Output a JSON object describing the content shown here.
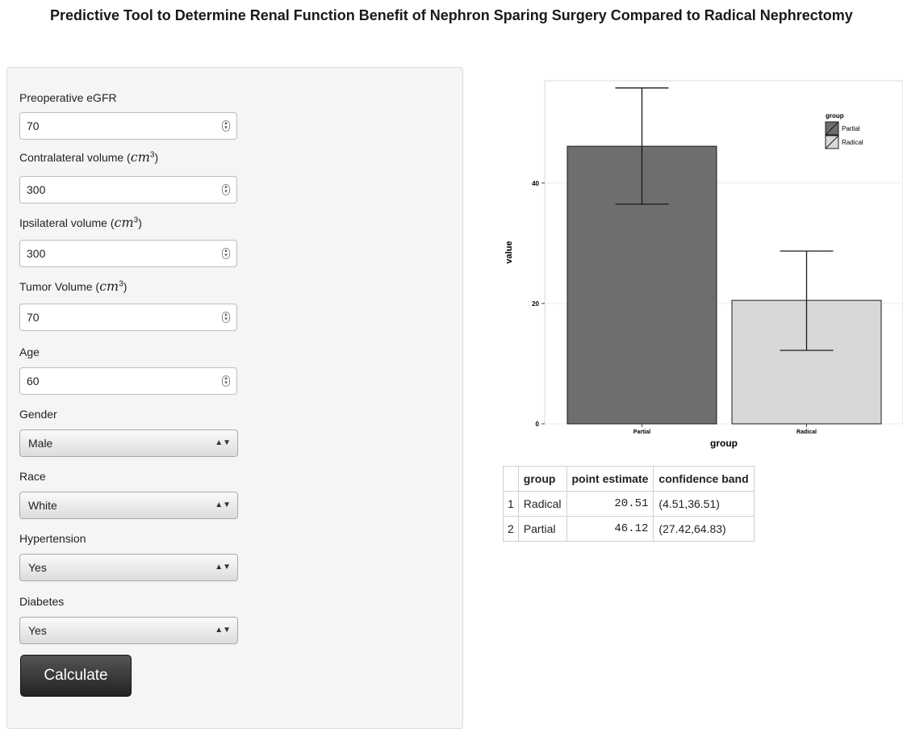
{
  "title": "Predictive Tool to Determine Renal Function Benefit of Nephron Sparing Surgery Compared to Radical Nephrectomy",
  "form": {
    "preop_egfr_label": "Preoperative eGFR",
    "preop_egfr_value": "70",
    "contralateral_label": "Contralateral volume",
    "contralateral_value": "300",
    "ipsilateral_label": "Ipsilateral volume",
    "ipsilateral_value": "300",
    "tumor_label": "Tumor Volume",
    "tumor_value": "70",
    "unit": "cm",
    "unit_exp": "3",
    "age_label": "Age",
    "age_value": "60",
    "gender_label": "Gender",
    "gender_value": "Male",
    "race_label": "Race",
    "race_value": "White",
    "hypertension_label": "Hypertension",
    "hypertension_value": "Yes",
    "diabetes_label": "Diabetes",
    "diabetes_value": "Yes",
    "calculate_label": "Calculate"
  },
  "chart_data": {
    "type": "bar",
    "categories": [
      "Partial",
      "Radical"
    ],
    "values": [
      46.12,
      20.51
    ],
    "error_low": [
      36.5,
      12.2
    ],
    "error_high": [
      55.8,
      28.7
    ],
    "xlabel": "group",
    "ylabel": "value",
    "ylim": [
      0,
      57
    ],
    "yticks": [
      "0",
      "20",
      "40"
    ],
    "legend_title": "group",
    "legend_labels": [
      "Partial",
      "Radical"
    ],
    "legend_position": "top-right",
    "colors": [
      "#6e6e6e",
      "#d8d8d8"
    ]
  },
  "results": {
    "headers": [
      "group",
      "point estimate",
      "confidence band"
    ],
    "rows": [
      {
        "idx": "1",
        "group": "Radical",
        "estimate": "20.51",
        "band": "(4.51,36.51)"
      },
      {
        "idx": "2",
        "group": "Partial",
        "estimate": "46.12",
        "band": "(27.42,64.83)"
      }
    ]
  }
}
